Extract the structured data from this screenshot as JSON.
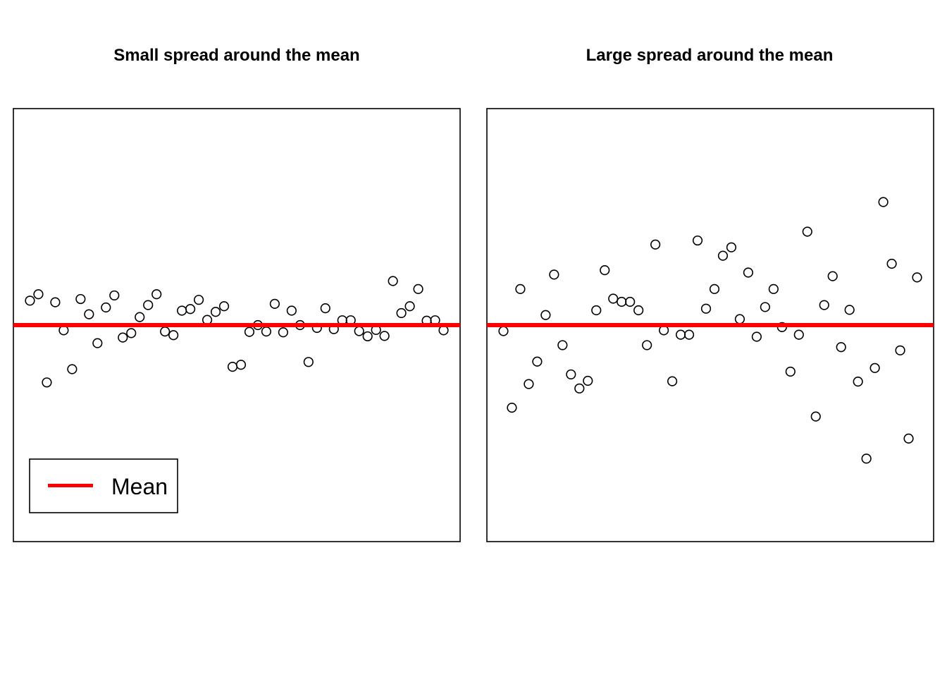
{
  "chart_data": [
    {
      "type": "scatter",
      "title": "Small spread around the mean",
      "xlim": [
        1,
        50
      ],
      "ylim": [
        -5,
        5
      ],
      "mean": 0,
      "mean_color": "#ff0000",
      "point_style": "open-circle",
      "axes_shown": false,
      "grid": false,
      "legend": {
        "position": "bottom-left",
        "entries": [
          {
            "label": "Mean",
            "color": "#ff0000",
            "style": "line"
          }
        ]
      },
      "series": [
        {
          "values": [
            0.61,
            0.77,
            -1.43,
            0.57,
            -0.13,
            -1.1,
            0.65,
            0.27,
            -0.45,
            0.44,
            0.74,
            -0.31,
            -0.2,
            0.2,
            0.5,
            0.77,
            -0.16,
            -0.25,
            0.36,
            0.4,
            0.63,
            0.13,
            0.33,
            0.47,
            -1.04,
            -0.99,
            -0.17,
            0.0,
            -0.16,
            0.53,
            -0.18,
            0.36,
            0.0,
            -0.92,
            -0.07,
            0.42,
            -0.1,
            0.12,
            0.12,
            -0.15,
            -0.28,
            -0.12,
            -0.27,
            1.1,
            0.3,
            0.47,
            0.9,
            0.11,
            0.12,
            -0.13
          ]
        }
      ]
    },
    {
      "type": "scatter",
      "title": "Large spread around the mean",
      "xlim": [
        1,
        50
      ],
      "ylim": [
        -5,
        5
      ],
      "mean": 0,
      "mean_color": "#ff0000",
      "point_style": "open-circle",
      "axes_shown": false,
      "grid": false,
      "series": [
        {
          "values": [
            -0.15,
            -2.06,
            0.9,
            -1.47,
            -0.91,
            0.25,
            1.26,
            -0.5,
            -1.23,
            -1.58,
            -1.39,
            0.37,
            1.37,
            0.66,
            0.58,
            0.58,
            0.37,
            -0.5,
            2.01,
            -0.13,
            -1.4,
            -0.24,
            -0.24,
            2.11,
            0.41,
            0.9,
            1.73,
            1.94,
            0.15,
            1.31,
            -0.29,
            0.45,
            0.9,
            -0.05,
            -1.16,
            -0.24,
            2.33,
            -2.28,
            0.5,
            1.22,
            -0.55,
            0.38,
            -1.41,
            -3.33,
            -1.07,
            3.07,
            1.53,
            -0.63,
            -2.83,
            1.19
          ]
        }
      ]
    }
  ]
}
